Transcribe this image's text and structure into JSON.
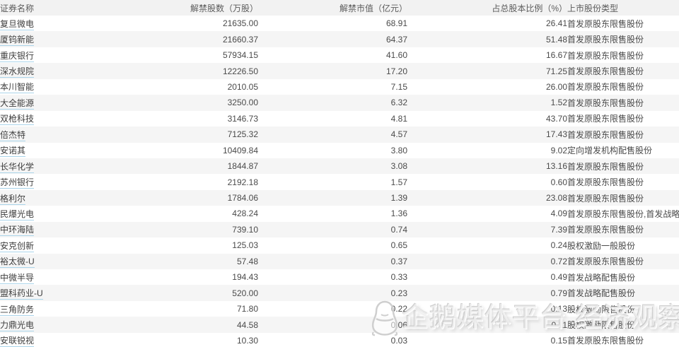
{
  "table": {
    "columns": [
      {
        "key": "name",
        "label": "证券名称",
        "align": "left"
      },
      {
        "key": "shares",
        "label": "解禁股数（万股）",
        "align": "right"
      },
      {
        "key": "mktval",
        "label": "解禁市值（亿元）",
        "align": "right"
      },
      {
        "key": "pct",
        "label": "占总股本比例（%）",
        "align": "right"
      },
      {
        "key": "type",
        "label": "上市股份类型",
        "align": "left"
      }
    ],
    "rows": [
      {
        "name": "复旦微电",
        "shares": "21635.00",
        "mktval": "68.91",
        "pct": "26.41",
        "type": "首发原股东限售股份"
      },
      {
        "name": "厦钨新能",
        "shares": "21660.37",
        "mktval": "64.37",
        "pct": "51.48",
        "type": "首发原股东限售股份"
      },
      {
        "name": "重庆银行",
        "shares": "57934.15",
        "mktval": "41.60",
        "pct": "16.67",
        "type": "首发原股东限售股份"
      },
      {
        "name": "深水规院",
        "shares": "12226.50",
        "mktval": "17.20",
        "pct": "71.25",
        "type": "首发原股东限售股份"
      },
      {
        "name": "本川智能",
        "shares": "2010.05",
        "mktval": "7.15",
        "pct": "26.00",
        "type": "首发原股东限售股份"
      },
      {
        "name": "大全能源",
        "shares": "3250.00",
        "mktval": "6.32",
        "pct": "1.52",
        "type": "首发原股东限售股份"
      },
      {
        "name": "双枪科技",
        "shares": "3146.73",
        "mktval": "4.81",
        "pct": "43.70",
        "type": "首发原股东限售股份"
      },
      {
        "name": "倍杰特",
        "shares": "7125.32",
        "mktval": "4.57",
        "pct": "17.43",
        "type": "首发原股东限售股份"
      },
      {
        "name": "安诺其",
        "shares": "10409.84",
        "mktval": "3.80",
        "pct": "9.02",
        "type": "定向增发机构配售股份"
      },
      {
        "name": "长华化学",
        "shares": "1844.87",
        "mktval": "3.08",
        "pct": "13.16",
        "type": "首发原股东限售股份"
      },
      {
        "name": "苏州银行",
        "shares": "2192.18",
        "mktval": "1.57",
        "pct": "0.60",
        "type": "首发原股东限售股份"
      },
      {
        "name": "格利尔",
        "shares": "1784.06",
        "mktval": "1.39",
        "pct": "23.08",
        "type": "首发原股东限售股份"
      },
      {
        "name": "民爆光电",
        "shares": "428.24",
        "mktval": "1.36",
        "pct": "4.09",
        "type": "首发原股东限售股份,首发战略配售股份"
      },
      {
        "name": "中环海陆",
        "shares": "739.10",
        "mktval": "0.74",
        "pct": "7.39",
        "type": "首发原股东限售股份"
      },
      {
        "name": "安克创新",
        "shares": "125.03",
        "mktval": "0.65",
        "pct": "0.24",
        "type": "股权激励一般股份"
      },
      {
        "name": "裕太微-U",
        "shares": "57.48",
        "mktval": "0.37",
        "pct": "0.72",
        "type": "首发原股东限售股份"
      },
      {
        "name": "中微半导",
        "shares": "194.43",
        "mktval": "0.33",
        "pct": "0.49",
        "type": "首发战略配售股份"
      },
      {
        "name": "盟科药业-U",
        "shares": "520.00",
        "mktval": "0.23",
        "pct": "0.79",
        "type": "首发战略配售股份"
      },
      {
        "name": "三角防务",
        "shares": "71.80",
        "mktval": "0.22",
        "pct": "0.13",
        "type": "股权激励限售股份"
      },
      {
        "name": "力鼎光电",
        "shares": "44.58",
        "mktval": "0.06",
        "pct": "0.11",
        "type": "股权激励限售股份"
      },
      {
        "name": "安联锐视",
        "shares": "10.30",
        "mktval": "0.03",
        "pct": "0.15",
        "type": "首发原股东限售股份"
      }
    ]
  },
  "watermark": {
    "text": "企鹅媒体平台 经济观察报",
    "icon": "qq-penguin-icon"
  },
  "colors": {
    "header_bg": "#f2f2f2",
    "row_alt_bg": "#f5f5f5",
    "link_underline": "#aad4ea",
    "body_text": "#4a4a4a",
    "header_text": "#5c5c5c",
    "watermark_gray": "#c4c4c4"
  }
}
